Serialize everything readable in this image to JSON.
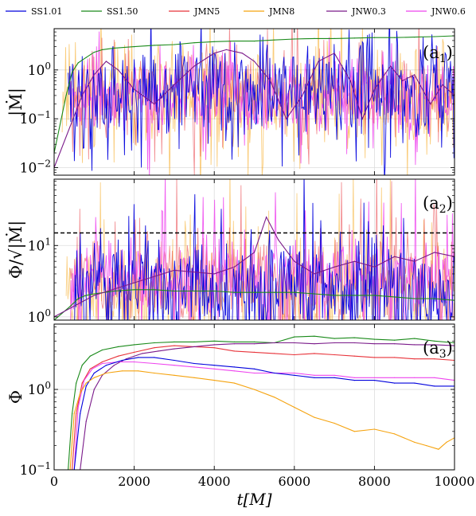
{
  "colors": {
    "SS1.01": "#0000dd",
    "SS1.50": "#1a8a1a",
    "JMN5": "#e8333a",
    "JMN8": "#f5a30f",
    "JNW0.3": "#7a1a8a",
    "JNW0.6": "#ee44ee"
  },
  "legend": [
    "SS1.01",
    "SS1.50",
    "JMN5",
    "JMN8",
    "JNW0.3",
    "JNW0.6"
  ],
  "chart_data": [
    {
      "type": "line",
      "panel_label": "(a",
      "panel_sub": "1",
      "panel_close": ")",
      "ylabel": "|Ṁ|",
      "yscale": "log",
      "ylim": [
        0.007,
        7
      ],
      "xlim": [
        0,
        10000
      ],
      "yticks": [
        {
          "v": 0.01,
          "b": "10",
          "e": "−2"
        },
        {
          "v": 0.1,
          "b": "10",
          "e": "−1"
        },
        {
          "v": 1,
          "b": "10",
          "e": "0"
        }
      ],
      "series": [
        {
          "name": "SS1.50",
          "x": [
            0,
            300,
            450,
            600,
            800,
            1000,
            1200,
            1500,
            2000,
            2500,
            3000,
            3500,
            4000,
            4500,
            5000,
            5500,
            6000,
            6500,
            7000,
            7500,
            8000,
            8500,
            9000,
            9500,
            10000
          ],
          "y": [
            0.02,
            0.3,
            0.9,
            1.4,
            1.8,
            2.3,
            2.6,
            2.8,
            3.0,
            3.2,
            3.3,
            3.6,
            3.8,
            3.9,
            3.9,
            4.1,
            4.3,
            4.4,
            4.4,
            4.5,
            4.6,
            4.6,
            4.7,
            4.8,
            5.0
          ]
        },
        {
          "name": "JNW0.3",
          "x": [
            0,
            700,
            1000,
            1300,
            1600,
            2000,
            2500,
            3000,
            3500,
            4000,
            4300,
            4700,
            5000,
            5400,
            5800,
            6200,
            6600,
            7000,
            7400,
            7700,
            8000,
            8400,
            8700,
            9000,
            9400,
            9700,
            10000
          ],
          "y": [
            0.01,
            0.3,
            0.8,
            1.5,
            1.0,
            0.4,
            0.2,
            0.5,
            1.2,
            2.2,
            2.6,
            2.2,
            1.5,
            0.6,
            0.1,
            0.3,
            1.5,
            2.2,
            0.6,
            0.1,
            0.4,
            1.2,
            0.6,
            0.8,
            0.2,
            0.5,
            0.3
          ]
        }
      ]
    },
    {
      "type": "line",
      "panel_label": "(a",
      "panel_sub": "2",
      "panel_close": ")",
      "ylabel": "Φ/√|Ṁ|",
      "yscale": "log",
      "ylim": [
        0.9,
        85
      ],
      "xlim": [
        0,
        10000
      ],
      "hline": 15,
      "yticks": [
        {
          "v": 1,
          "b": "10",
          "e": "0"
        },
        {
          "v": 10,
          "b": "10",
          "e": "1"
        }
      ],
      "series": [
        {
          "name": "SS1.50",
          "x": [
            0,
            400,
            600,
            800,
            1000,
            1500,
            2000,
            2500,
            3000,
            3500,
            4000,
            4500,
            5000,
            5500,
            6000,
            6500,
            7000,
            7500,
            8000,
            8500,
            9000,
            9500,
            10000
          ],
          "y": [
            0.9,
            1.4,
            1.8,
            2.0,
            2.1,
            2.3,
            2.4,
            2.4,
            2.3,
            2.3,
            2.3,
            2.2,
            2.2,
            2.2,
            2.2,
            2.1,
            2.0,
            2.0,
            2.0,
            1.9,
            1.8,
            1.8,
            1.7
          ]
        },
        {
          "name": "JNW0.3",
          "x": [
            0,
            1000,
            2000,
            3000,
            4000,
            4500,
            5000,
            5300,
            5600,
            6000,
            6500,
            7000,
            7500,
            8000,
            8500,
            9000,
            9500,
            10000
          ],
          "y": [
            1.0,
            2.0,
            3.0,
            4.5,
            4.0,
            5.0,
            8.0,
            25.0,
            12.0,
            6.0,
            4.0,
            5.0,
            6.0,
            5.0,
            7.0,
            6.0,
            8.0,
            7.0
          ]
        }
      ]
    },
    {
      "type": "line",
      "panel_label": "(a",
      "panel_sub": "3",
      "panel_close": ")",
      "ylabel": "Φ",
      "yscale": "log",
      "ylim": [
        0.1,
        6.5
      ],
      "xlim": [
        0,
        10000
      ],
      "xlabel": "t[M]",
      "xticks": [
        "0",
        "2000",
        "4000",
        "6000",
        "8000",
        "10000"
      ],
      "xtick_values": [
        0,
        2000,
        4000,
        6000,
        8000,
        10000
      ],
      "yticks": [
        {
          "v": 0.1,
          "b": "10",
          "e": "−1"
        },
        {
          "v": 1,
          "b": "10",
          "e": "0"
        }
      ],
      "series": [
        {
          "name": "SS1.50",
          "x": [
            350,
            450,
            550,
            700,
            900,
            1200,
            1600,
            2000,
            2500,
            3000,
            3500,
            4000,
            4500,
            5000,
            5500,
            6000,
            6500,
            7000,
            7500,
            8000,
            8500,
            9000,
            9500,
            10000
          ],
          "y": [
            0.1,
            0.5,
            1.2,
            2.0,
            2.6,
            3.1,
            3.4,
            3.6,
            3.8,
            3.9,
            3.9,
            4.0,
            3.9,
            3.9,
            3.8,
            4.5,
            4.6,
            4.3,
            4.4,
            4.2,
            4.1,
            4.3,
            4.0,
            3.8
          ]
        },
        {
          "name": "JMN5",
          "x": [
            450,
            550,
            700,
            900,
            1200,
            1600,
            2000,
            2500,
            3000,
            3500,
            4000,
            4500,
            5000,
            5500,
            6000,
            6500,
            7000,
            7500,
            8000,
            8500,
            9000,
            9500,
            10000
          ],
          "y": [
            0.1,
            0.5,
            1.2,
            1.8,
            2.2,
            2.6,
            2.9,
            3.3,
            3.5,
            3.4,
            3.3,
            3.0,
            2.9,
            2.8,
            2.7,
            2.8,
            2.7,
            2.6,
            2.5,
            2.5,
            2.4,
            2.4,
            2.3
          ]
        },
        {
          "name": "JNW0.3",
          "x": [
            650,
            800,
            1000,
            1200,
            1500,
            1800,
            2200,
            2600,
            3000,
            3500,
            4000,
            4500,
            5000,
            5500,
            6000,
            6500,
            7000,
            7500,
            8000,
            8500,
            9000,
            9500,
            10000
          ],
          "y": [
            0.1,
            0.4,
            1.0,
            1.5,
            2.0,
            2.4,
            2.8,
            3.0,
            3.2,
            3.4,
            3.6,
            3.7,
            3.7,
            3.8,
            3.8,
            3.7,
            3.8,
            3.8,
            3.7,
            3.7,
            3.6,
            3.6,
            3.5
          ]
        },
        {
          "name": "JNW0.6",
          "x": [
            500,
            600,
            750,
            950,
            1200,
            1600,
            2000,
            2500,
            3000,
            3500,
            4000,
            4500,
            5000,
            5500,
            6000,
            6500,
            7000,
            7500,
            8000,
            8500,
            9000,
            9500,
            10000
          ],
          "y": [
            0.1,
            0.6,
            1.3,
            1.8,
            2.1,
            2.2,
            2.2,
            2.1,
            2.0,
            1.9,
            1.8,
            1.7,
            1.6,
            1.6,
            1.6,
            1.5,
            1.5,
            1.4,
            1.4,
            1.4,
            1.4,
            1.4,
            1.3
          ]
        },
        {
          "name": "SS1.01",
          "x": [
            500,
            650,
            800,
            1000,
            1300,
            1700,
            2100,
            2500,
            3000,
            3500,
            4000,
            4500,
            5000,
            5500,
            6000,
            6500,
            7000,
            7500,
            8000,
            8500,
            9000,
            9500,
            10000
          ],
          "y": [
            0.1,
            0.5,
            1.1,
            1.6,
            2.0,
            2.3,
            2.5,
            2.5,
            2.3,
            2.1,
            2.0,
            1.9,
            1.8,
            1.6,
            1.5,
            1.4,
            1.4,
            1.3,
            1.3,
            1.2,
            1.2,
            1.1,
            1.1
          ]
        },
        {
          "name": "JMN8",
          "x": [
            400,
            500,
            650,
            800,
            1000,
            1300,
            1700,
            2100,
            2500,
            3000,
            3500,
            4000,
            4500,
            5000,
            5500,
            6000,
            6500,
            7000,
            7500,
            8000,
            8500,
            9000,
            9300,
            9600,
            9800,
            10000
          ],
          "y": [
            0.1,
            0.5,
            0.9,
            1.2,
            1.4,
            1.6,
            1.7,
            1.7,
            1.6,
            1.5,
            1.4,
            1.3,
            1.2,
            1.0,
            0.8,
            0.6,
            0.45,
            0.38,
            0.3,
            0.32,
            0.28,
            0.22,
            0.2,
            0.18,
            0.22,
            0.25
          ]
        }
      ]
    }
  ]
}
